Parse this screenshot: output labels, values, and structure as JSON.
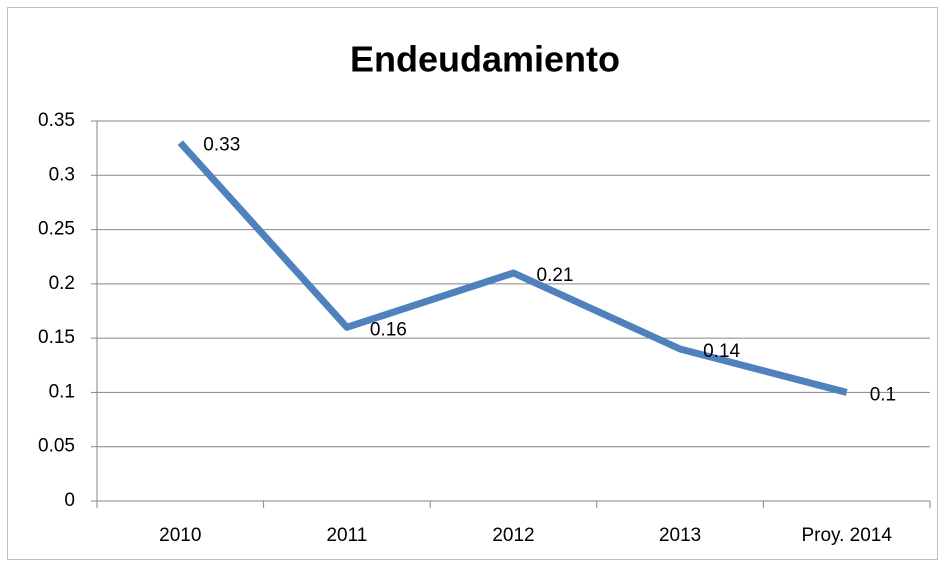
{
  "chart_data": {
    "type": "line",
    "title": "Endeudamiento",
    "categories": [
      "2010",
      "2011",
      "2012",
      "2013",
      "Proy. 2014"
    ],
    "values": [
      0.33,
      0.16,
      0.21,
      0.14,
      0.1
    ],
    "color": "#4f81bd",
    "ylim": [
      0,
      0.35
    ],
    "yticks": [
      0,
      0.05,
      0.1,
      0.15,
      0.2,
      0.25,
      0.3,
      0.35
    ],
    "grid": true,
    "data_labels": true
  }
}
